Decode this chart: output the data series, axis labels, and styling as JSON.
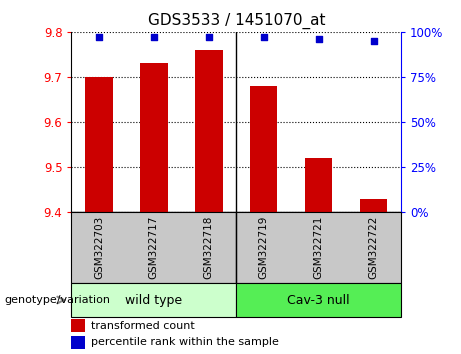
{
  "title": "GDS3533 / 1451070_at",
  "samples": [
    "GSM322703",
    "GSM322717",
    "GSM322718",
    "GSM322719",
    "GSM322721",
    "GSM322722"
  ],
  "bar_values": [
    9.7,
    9.73,
    9.76,
    9.68,
    9.52,
    9.43
  ],
  "bar_base": 9.4,
  "percentile_values": [
    97,
    97,
    97,
    97,
    96,
    95
  ],
  "ylim_left": [
    9.4,
    9.8
  ],
  "ylim_right": [
    0,
    100
  ],
  "yticks_left": [
    9.4,
    9.5,
    9.6,
    9.7,
    9.8
  ],
  "yticks_right": [
    0,
    25,
    50,
    75,
    100
  ],
  "bar_color": "#cc0000",
  "percentile_color": "#0000cc",
  "group1_label": "wild type",
  "group2_label": "Cav-3 null",
  "group1_color": "#ccffcc",
  "group2_color": "#55ee55",
  "group_label_text": "genotype/variation",
  "sample_bg_color": "#c8c8c8",
  "legend_bar_label": "transformed count",
  "legend_pct_label": "percentile rank within the sample",
  "title_fontsize": 11,
  "tick_fontsize": 8.5,
  "sample_fontsize": 7.5,
  "group_fontsize": 9,
  "legend_fontsize": 8
}
